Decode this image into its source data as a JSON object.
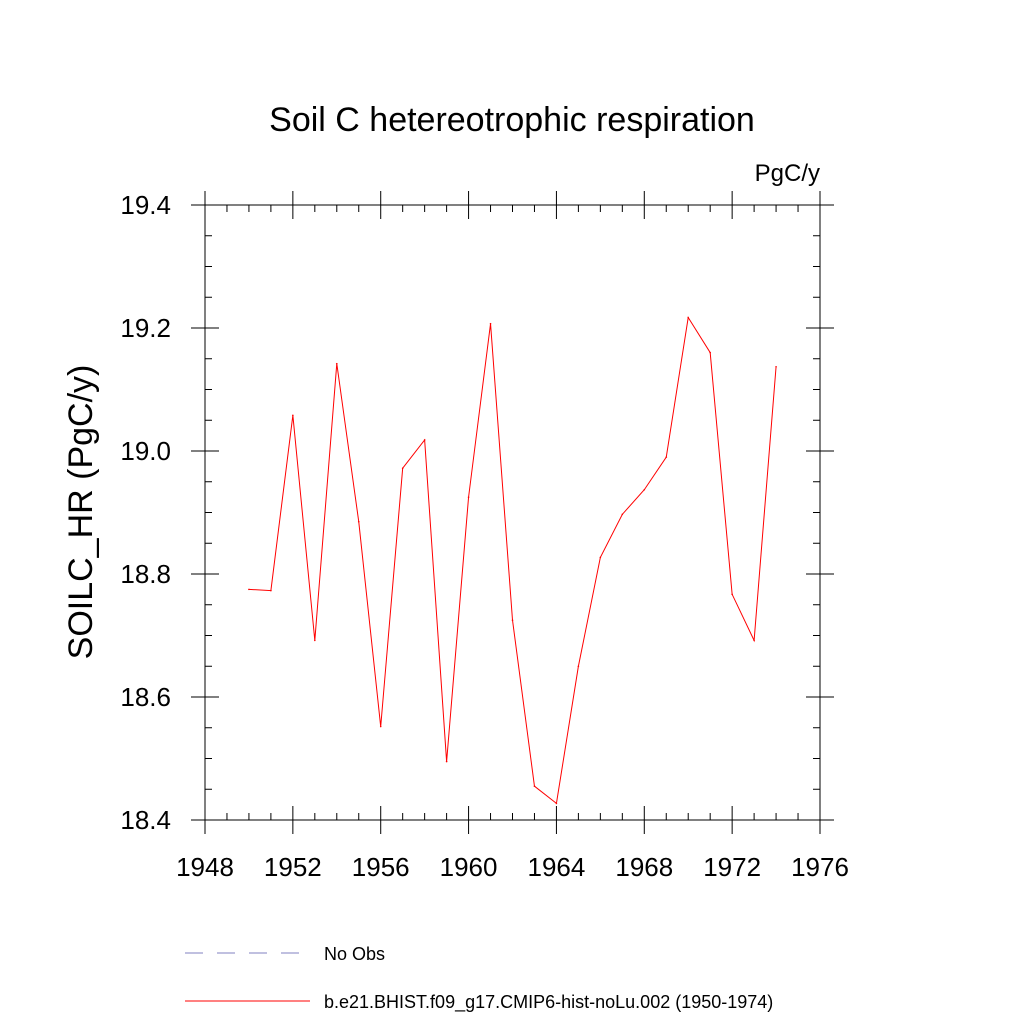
{
  "chart_data": {
    "type": "line",
    "title": "Soil C hetereotrophic respiration",
    "units_label": "PgC/y",
    "ylabel": "SOILC_HR  (PgC/y)",
    "xlabel": "",
    "xlim": [
      1948,
      1976
    ],
    "ylim": [
      18.4,
      19.4
    ],
    "x_ticks": [
      1948,
      1952,
      1956,
      1960,
      1964,
      1968,
      1972,
      1976
    ],
    "x_tick_labels": [
      "1948",
      "1952",
      "1956",
      "1960",
      "1964",
      "1968",
      "1972",
      "1976"
    ],
    "y_ticks": [
      18.4,
      18.6,
      18.8,
      19.0,
      19.2,
      19.4
    ],
    "y_tick_labels": [
      "18.4",
      "18.6",
      "18.8",
      "19.0",
      "19.2",
      "19.4"
    ],
    "grid": false,
    "legend_position": "bottom",
    "series": [
      {
        "name": "b.e21.BHIST.f09_g17.CMIP6-hist-noLu.002 (1950-1974)",
        "color": "#ff0000",
        "style": "solid",
        "x": [
          1950,
          1951,
          1952,
          1953,
          1954,
          1955,
          1956,
          1957,
          1958,
          1959,
          1960,
          1961,
          1962,
          1963,
          1964,
          1965,
          1966,
          1967,
          1968,
          1969,
          1970,
          1971,
          1972,
          1973,
          1974
        ],
        "values": [
          18.775,
          18.773,
          19.058,
          18.692,
          19.142,
          18.885,
          18.552,
          18.972,
          19.018,
          18.495,
          18.925,
          19.207,
          18.725,
          18.455,
          18.427,
          18.65,
          18.827,
          18.897,
          18.937,
          18.99,
          19.217,
          19.16,
          18.767,
          18.692,
          19.137
        ]
      }
    ],
    "legend": [
      {
        "label": "No Obs",
        "color": "#8080c0",
        "style": "dashed"
      },
      {
        "label": "b.e21.BHIST.f09_g17.CMIP6-hist-noLu.002 (1950-1974)",
        "color": "#ff0000",
        "style": "solid"
      }
    ]
  }
}
